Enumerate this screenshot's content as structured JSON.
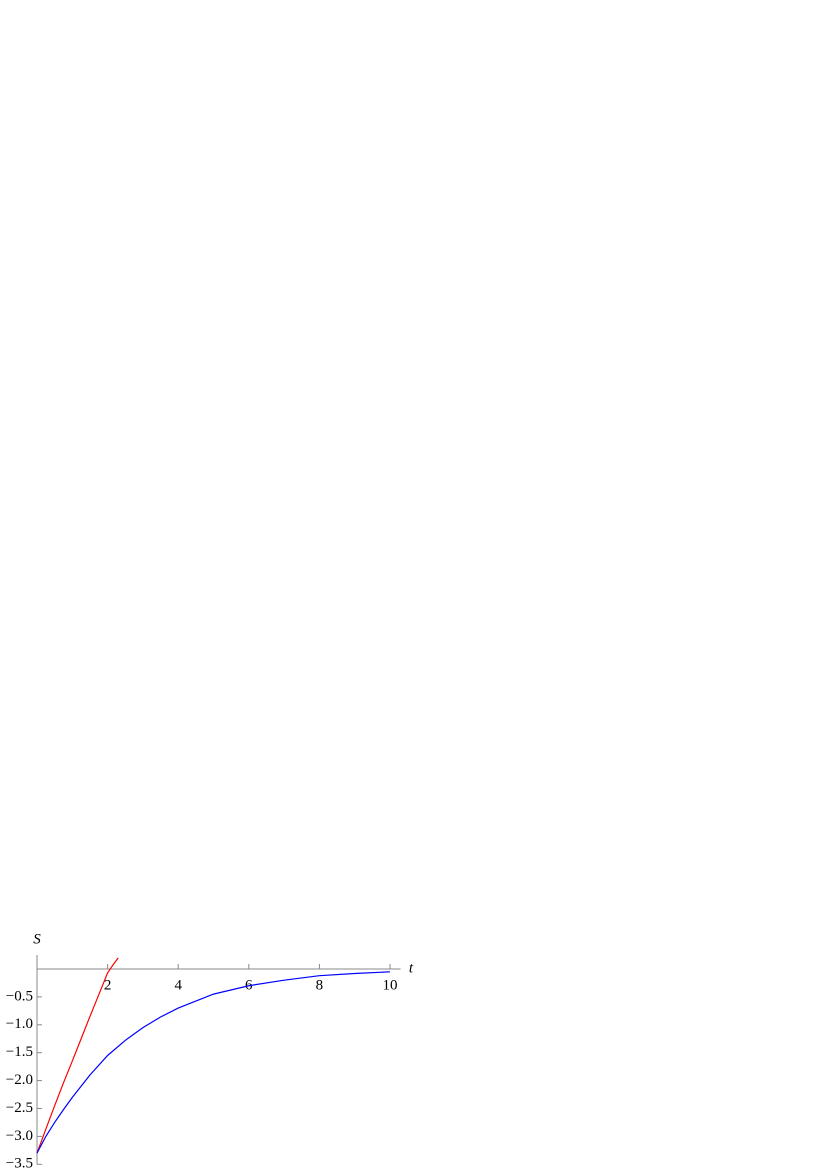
{
  "chart_data": {
    "type": "line",
    "x_label": "t",
    "y_label": "S",
    "xlim": [
      0,
      10.3
    ],
    "ylim": [
      -3.5,
      0.25
    ],
    "xticks": [
      2,
      4,
      6,
      8,
      10
    ],
    "yticks": [
      -0.5,
      -1.0,
      -1.5,
      -2.0,
      -2.5,
      -3.0,
      -3.5
    ],
    "series": [
      {
        "color": "#ff0000",
        "x": [
          0,
          0.25,
          0.5,
          0.75,
          1,
          1.25,
          1.5,
          1.75,
          2,
          2.15,
          2.3
        ],
        "values": [
          -3.3,
          -2.87,
          -2.45,
          -2.04,
          -1.65,
          -1.25,
          -0.85,
          -0.46,
          -0.07,
          0.07,
          0.2
        ]
      },
      {
        "color": "#0000ff",
        "x": [
          0,
          0.25,
          0.5,
          0.75,
          1,
          1.5,
          2,
          2.5,
          3,
          3.5,
          4,
          5,
          6,
          7,
          8,
          9,
          10
        ],
        "values": [
          -3.3,
          -3.0,
          -2.75,
          -2.52,
          -2.3,
          -1.9,
          -1.55,
          -1.28,
          -1.05,
          -0.86,
          -0.7,
          -0.45,
          -0.3,
          -0.2,
          -0.12,
          -0.08,
          -0.05
        ]
      }
    ]
  }
}
